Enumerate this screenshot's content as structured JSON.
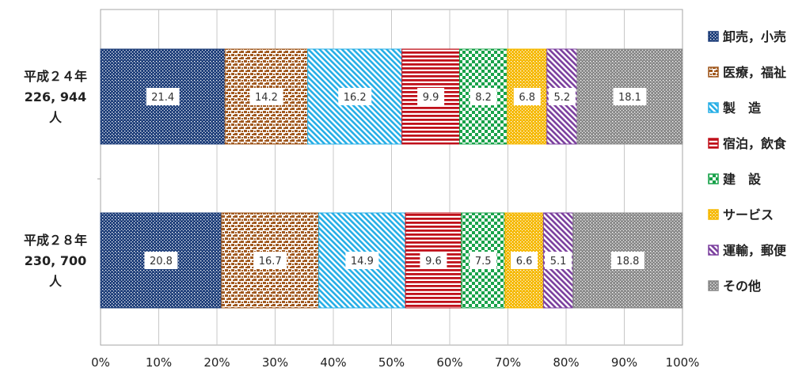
{
  "chart_data": {
    "type": "bar",
    "orientation": "horizontal",
    "stacked": true,
    "percent": true,
    "categories": [
      {
        "lines": [
          "平成２４年",
          "226, 944",
          "人"
        ]
      },
      {
        "lines": [
          "平成２８年",
          "230, 700",
          "人"
        ]
      }
    ],
    "xlim": [
      0,
      100
    ],
    "xticks": [
      "0%",
      "10%",
      "20%",
      "30%",
      "40%",
      "50%",
      "60%",
      "70%",
      "80%",
      "90%",
      "100%"
    ],
    "grid": true,
    "legend_position": "right",
    "series": [
      {
        "name": "卸売，小売",
        "color": "#1f3f7a",
        "pattern": "dots",
        "values": [
          21.4,
          20.8
        ]
      },
      {
        "name": "医療，福祉",
        "color": "#a0581e",
        "pattern": "blobs",
        "values": [
          14.2,
          16.7
        ]
      },
      {
        "name": "製　造",
        "color": "#25aee6",
        "pattern": "diagonal",
        "values": [
          16.2,
          14.9
        ]
      },
      {
        "name": "宿泊，飲食",
        "color": "#c0101a",
        "pattern": "hlines",
        "values": [
          9.9,
          9.6
        ]
      },
      {
        "name": "建　設",
        "color": "#19a24a",
        "pattern": "checker",
        "values": [
          8.2,
          7.5
        ]
      },
      {
        "name": "サービス",
        "color": "#f5b800",
        "pattern": "dots",
        "values": [
          6.8,
          6.6
        ]
      },
      {
        "name": "運輸，郵便",
        "color": "#7b3f9e",
        "pattern": "diagonal",
        "values": [
          5.2,
          5.1
        ]
      },
      {
        "name": "その他",
        "color": "#8a8a8a",
        "pattern": "dots",
        "values": [
          18.1,
          18.8
        ]
      }
    ],
    "data_labels": [
      [
        "21.4",
        "14.2",
        "16.2",
        "9.9",
        "8.2",
        "6.8",
        "5.2",
        "18.1"
      ],
      [
        "20.8",
        "16.7",
        "14.9",
        "9.6",
        "7.5",
        "6.6",
        "5.1",
        "18.8"
      ]
    ]
  }
}
